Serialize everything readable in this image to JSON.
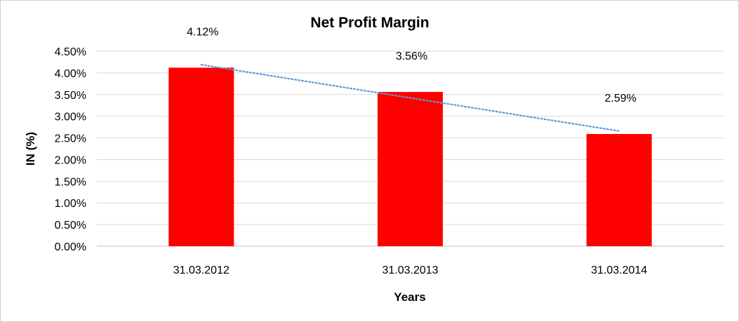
{
  "chart_data": {
    "type": "bar",
    "title": "Net Profit Margin",
    "xlabel": "Years",
    "ylabel": "IN (%)",
    "categories": [
      "31.03.2012",
      "31.03.2013",
      "31.03.2014"
    ],
    "values": [
      4.12,
      3.56,
      2.59
    ],
    "data_labels": [
      "4.12%",
      "3.56%",
      "2.59%"
    ],
    "ylim": [
      0,
      4.5
    ],
    "yticks": [
      0,
      0.5,
      1.0,
      1.5,
      2.0,
      2.5,
      3.0,
      3.5,
      4.0,
      4.5
    ],
    "ytick_labels": [
      "0.00%",
      "0.50%",
      "1.00%",
      "1.50%",
      "2.00%",
      "2.50%",
      "3.00%",
      "3.50%",
      "4.00%",
      "4.50%"
    ],
    "grid": true,
    "legend": "none",
    "trendline": {
      "type": "linear",
      "style": "dotted"
    },
    "colors": {
      "bar": "#ff0000",
      "trendline": "#5b9bd5",
      "grid": "#d9d9d9",
      "axis": "#bfbfbf"
    }
  }
}
